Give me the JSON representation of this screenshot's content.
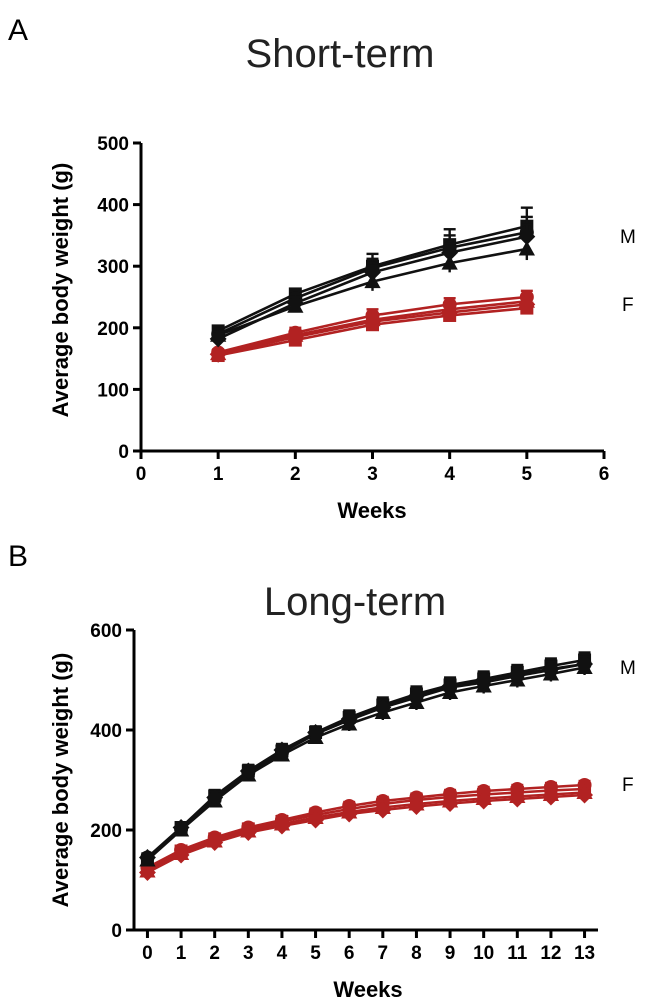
{
  "colors": {
    "male": "#111111",
    "female": "#b22222",
    "axis": "#000000"
  },
  "chart_data": [
    {
      "panel": "A",
      "type": "line",
      "title": "Short-term",
      "xlabel": "Weeks",
      "ylabel": "Average body weight (g)",
      "xlim": [
        0,
        6
      ],
      "ylim": [
        0,
        500
      ],
      "xticks": [
        0,
        1,
        2,
        3,
        4,
        5,
        6
      ],
      "yticks": [
        0,
        100,
        200,
        300,
        400,
        500
      ],
      "group_labels": {
        "male": "M",
        "female": "F"
      },
      "x": [
        1,
        2,
        3,
        4,
        5
      ],
      "series": [
        {
          "name": "M-square",
          "group": "male",
          "marker": "square",
          "values": [
            195,
            255,
            300,
            335,
            365
          ],
          "error": [
            6,
            8,
            20,
            25,
            30
          ]
        },
        {
          "name": "M-circle",
          "group": "male",
          "marker": "circle",
          "values": [
            190,
            248,
            297,
            330,
            355
          ],
          "error": [
            6,
            8,
            15,
            20,
            25
          ]
        },
        {
          "name": "M-triangle",
          "group": "male",
          "marker": "triangle",
          "values": [
            188,
            235,
            275,
            305,
            328
          ],
          "error": [
            6,
            10,
            15,
            15,
            18
          ]
        },
        {
          "name": "M-diamond",
          "group": "male",
          "marker": "diamond",
          "values": [
            182,
            240,
            290,
            322,
            348
          ],
          "error": [
            6,
            10,
            15,
            15,
            20
          ]
        },
        {
          "name": "F-square",
          "group": "female",
          "marker": "square",
          "values": [
            155,
            180,
            205,
            220,
            232
          ],
          "error": [
            5,
            6,
            8,
            8,
            8
          ]
        },
        {
          "name": "F-circle",
          "group": "female",
          "marker": "circle",
          "values": [
            160,
            192,
            220,
            238,
            250
          ],
          "error": [
            5,
            8,
            10,
            10,
            10
          ]
        },
        {
          "name": "F-triangle",
          "group": "female",
          "marker": "triangle",
          "values": [
            158,
            188,
            213,
            230,
            243
          ],
          "error": [
            5,
            7,
            9,
            9,
            9
          ]
        },
        {
          "name": "F-diamond",
          "group": "female",
          "marker": "diamond",
          "values": [
            157,
            185,
            210,
            225,
            238
          ],
          "error": [
            5,
            7,
            9,
            9,
            9
          ]
        }
      ]
    },
    {
      "panel": "B",
      "type": "line",
      "title": "Long-term",
      "xlabel": "Weeks",
      "ylabel": "Average body weight (g)",
      "xlim": [
        -0.4,
        13.4
      ],
      "ylim": [
        0,
        600
      ],
      "xticks": [
        0,
        1,
        2,
        3,
        4,
        5,
        6,
        7,
        8,
        9,
        10,
        11,
        12,
        13
      ],
      "yticks": [
        0,
        200,
        400,
        600
      ],
      "group_labels": {
        "male": "M",
        "female": "F"
      },
      "x": [
        0,
        1,
        2,
        3,
        4,
        5,
        6,
        7,
        8,
        9,
        10,
        11,
        12,
        13
      ],
      "series": [
        {
          "name": "M-square",
          "group": "male",
          "marker": "square",
          "values": [
            140,
            205,
            268,
            318,
            358,
            395,
            425,
            450,
            472,
            490,
            502,
            515,
            528,
            540
          ],
          "error": [
            8,
            10,
            12,
            12,
            12,
            12,
            14,
            15,
            15,
            15,
            15,
            15,
            15,
            15
          ]
        },
        {
          "name": "M-circle",
          "group": "male",
          "marker": "circle",
          "values": [
            145,
            202,
            262,
            315,
            355,
            392,
            420,
            445,
            465,
            485,
            495,
            508,
            520,
            532
          ],
          "error": [
            8,
            10,
            12,
            12,
            12,
            12,
            14,
            15,
            15,
            15,
            15,
            15,
            15,
            15
          ]
        },
        {
          "name": "M-triangle",
          "group": "male",
          "marker": "triangle",
          "values": [
            140,
            200,
            258,
            310,
            350,
            385,
            412,
            435,
            455,
            475,
            488,
            500,
            512,
            525
          ],
          "error": [
            8,
            10,
            12,
            12,
            12,
            12,
            14,
            15,
            15,
            15,
            15,
            15,
            15,
            15
          ]
        },
        {
          "name": "M-diamond",
          "group": "male",
          "marker": "diamond",
          "values": [
            145,
            205,
            265,
            318,
            360,
            395,
            422,
            445,
            468,
            488,
            500,
            512,
            522,
            532
          ],
          "error": [
            8,
            10,
            12,
            12,
            12,
            12,
            14,
            15,
            15,
            15,
            15,
            15,
            15,
            15
          ]
        },
        {
          "name": "F-circle",
          "group": "female",
          "marker": "circle",
          "values": [
            125,
            160,
            185,
            205,
            220,
            235,
            248,
            258,
            265,
            272,
            278,
            282,
            286,
            290
          ],
          "error": [
            6,
            8,
            8,
            8,
            8,
            8,
            8,
            8,
            8,
            8,
            8,
            8,
            8,
            8
          ]
        },
        {
          "name": "F-square",
          "group": "female",
          "marker": "square",
          "values": [
            122,
            158,
            182,
            202,
            217,
            230,
            242,
            252,
            260,
            266,
            271,
            275,
            279,
            282
          ],
          "error": [
            6,
            8,
            8,
            8,
            8,
            8,
            8,
            8,
            8,
            8,
            8,
            8,
            8,
            8
          ]
        },
        {
          "name": "F-triangle",
          "group": "female",
          "marker": "triangle",
          "values": [
            118,
            153,
            178,
            198,
            212,
            225,
            236,
            245,
            252,
            258,
            263,
            267,
            271,
            275
          ],
          "error": [
            6,
            8,
            8,
            8,
            8,
            8,
            8,
            8,
            8,
            8,
            8,
            8,
            8,
            8
          ]
        },
        {
          "name": "F-diamond",
          "group": "female",
          "marker": "diamond",
          "values": [
            115,
            150,
            175,
            195,
            208,
            220,
            232,
            240,
            247,
            253,
            258,
            262,
            266,
            270
          ],
          "error": [
            6,
            8,
            8,
            8,
            8,
            8,
            8,
            8,
            8,
            8,
            8,
            8,
            8,
            8
          ]
        }
      ]
    }
  ]
}
